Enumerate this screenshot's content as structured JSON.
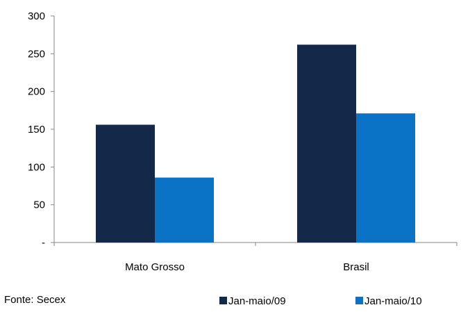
{
  "chart_data": {
    "type": "bar",
    "categories": [
      "Mato Grosso",
      "Brasil"
    ],
    "series": [
      {
        "name": "Jan-maio/09",
        "values": [
          156,
          262
        ],
        "color": "#142849"
      },
      {
        "name": "Jan-maio/10",
        "values": [
          86,
          171
        ],
        "color": "#0a73c6"
      }
    ],
    "ylim": [
      0,
      300
    ],
    "yticks": [
      0,
      50,
      100,
      150,
      200,
      250,
      300
    ],
    "ytick_labels": [
      "-",
      "50",
      "100",
      "150",
      "200",
      "250",
      "300"
    ],
    "grid": false,
    "legend_position": "bottom-right",
    "source_note": "Fonte:  Secex"
  }
}
